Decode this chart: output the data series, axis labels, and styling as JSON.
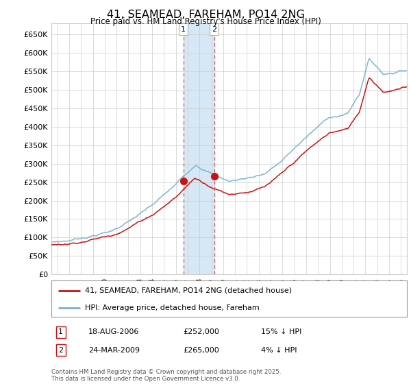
{
  "title": "41, SEAMEAD, FAREHAM, PO14 2NG",
  "subtitle": "Price paid vs. HM Land Registry's House Price Index (HPI)",
  "ylabel_ticks": [
    "£0",
    "£50K",
    "£100K",
    "£150K",
    "£200K",
    "£250K",
    "£300K",
    "£350K",
    "£400K",
    "£450K",
    "£500K",
    "£550K",
    "£600K",
    "£650K"
  ],
  "ytick_vals": [
    0,
    50000,
    100000,
    150000,
    200000,
    250000,
    300000,
    350000,
    400000,
    450000,
    500000,
    550000,
    600000,
    650000
  ],
  "ylim": [
    0,
    680000
  ],
  "xlim_start": 1995.5,
  "xlim_end": 2025.5,
  "hpi_color": "#7ab0d4",
  "price_color": "#cc1111",
  "transaction1_x": 2006.63,
  "transaction1_y": 252000,
  "transaction2_x": 2009.23,
  "transaction2_y": 265000,
  "legend_label_red": "41, SEAMEAD, FAREHAM, PO14 2NG (detached house)",
  "legend_label_blue": "HPI: Average price, detached house, Fareham",
  "annotation1_date": "18-AUG-2006",
  "annotation1_price": "£252,000",
  "annotation1_hpi": "15% ↓ HPI",
  "annotation2_date": "24-MAR-2009",
  "annotation2_price": "£265,000",
  "annotation2_hpi": "4% ↓ HPI",
  "footer": "Contains HM Land Registry data © Crown copyright and database right 2025.\nThis data is licensed under the Open Government Licence v3.0.",
  "background_color": "#ffffff",
  "grid_color": "#cccccc",
  "shade_color": "#d6e8f5"
}
